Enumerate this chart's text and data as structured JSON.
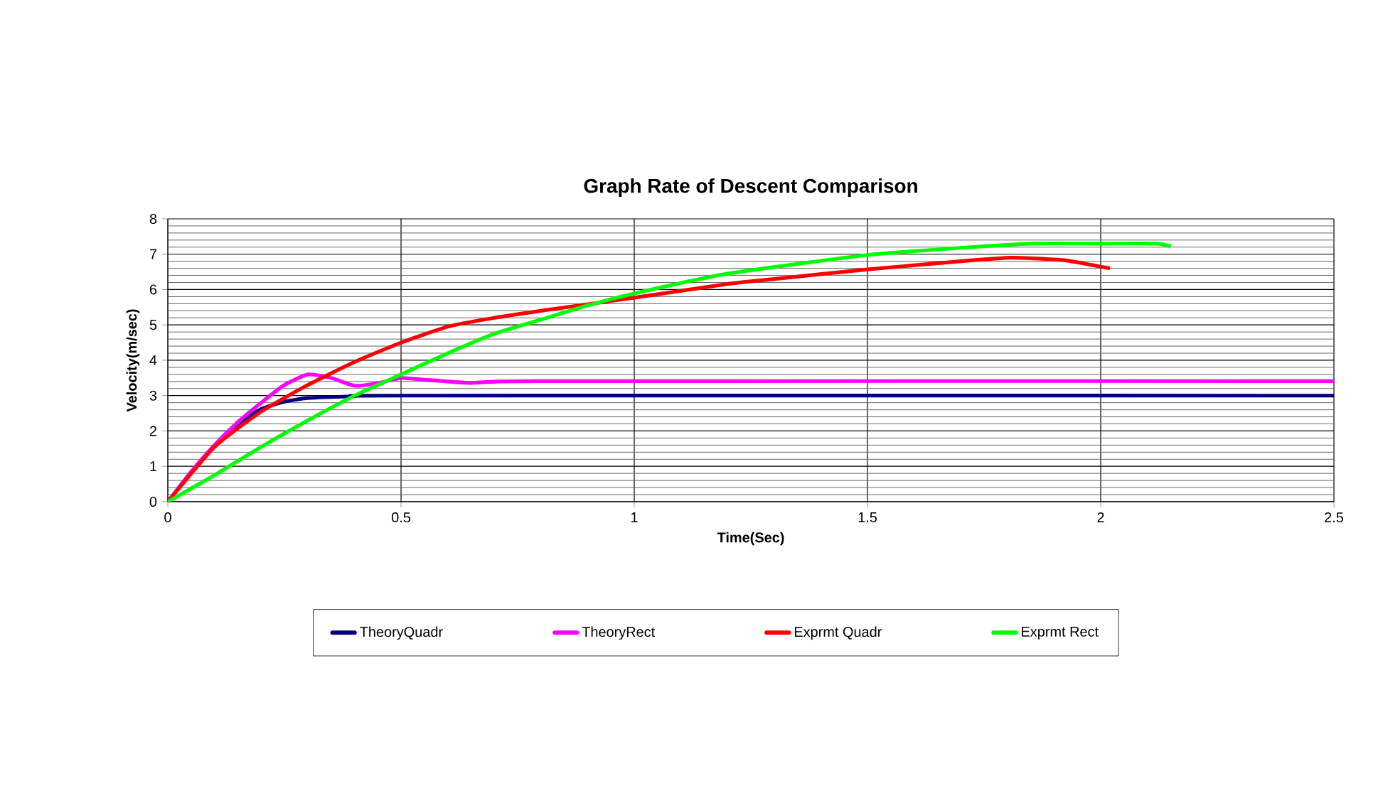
{
  "chart_data": {
    "type": "line",
    "title": "Graph Rate of Descent Comparison",
    "xlabel": "Time(Sec)",
    "ylabel": "Velocity(m/sec)",
    "xlim": [
      0,
      2.5
    ],
    "xticks": [
      0,
      0.5,
      1,
      1.5,
      2,
      2.5
    ],
    "ylim": [
      0,
      8
    ],
    "yticks": [
      0,
      1,
      2,
      3,
      4,
      5,
      6,
      7,
      8
    ],
    "grid": true,
    "legend": "bottom",
    "marker": "none",
    "line_style": "solid",
    "series": [
      {
        "name": "TheoryQuadr",
        "color": "#000080",
        "x": [
          0.1,
          0.15,
          0.2,
          0.25,
          0.3,
          0.4,
          0.5,
          2.5
        ],
        "values": [
          1.55,
          2.2,
          2.62,
          2.83,
          2.93,
          2.98,
          3.0,
          3.0
        ]
      },
      {
        "name": "TheoryRect",
        "color": "#ff00ff",
        "x": [
          0,
          0.05,
          0.1,
          0.15,
          0.2,
          0.25,
          0.3,
          0.35,
          0.4,
          0.45,
          0.5,
          0.55,
          0.65,
          0.8,
          2.5
        ],
        "values": [
          0,
          0.85,
          1.6,
          2.25,
          2.8,
          3.3,
          3.6,
          3.5,
          3.28,
          3.35,
          3.5,
          3.45,
          3.36,
          3.41,
          3.41
        ]
      },
      {
        "name": "Exprmt Quadr",
        "color": "#ff0000",
        "x": [
          0,
          0.1,
          0.2,
          0.3,
          0.4,
          0.5,
          0.6,
          0.7,
          0.8,
          1.0,
          1.2,
          1.3,
          1.5,
          1.7,
          1.81,
          1.92,
          2.02
        ],
        "values": [
          0,
          1.55,
          2.55,
          3.3,
          3.95,
          4.5,
          4.95,
          5.2,
          5.4,
          5.77,
          6.16,
          6.3,
          6.57,
          6.8,
          6.9,
          6.83,
          6.6
        ]
      },
      {
        "name": "Exprmt Rect",
        "color": "#00ff00",
        "x": [
          0,
          0.1,
          0.2,
          0.3,
          0.4,
          0.5,
          0.6,
          0.7,
          0.8,
          0.9,
          1.0,
          1.2,
          1.5,
          1.7,
          1.85,
          2.0,
          2.12,
          2.15
        ],
        "values": [
          0,
          0.75,
          1.55,
          2.3,
          3.0,
          3.6,
          4.2,
          4.75,
          5.15,
          5.55,
          5.89,
          6.45,
          6.98,
          7.18,
          7.3,
          7.3,
          7.3,
          7.22
        ]
      }
    ]
  }
}
